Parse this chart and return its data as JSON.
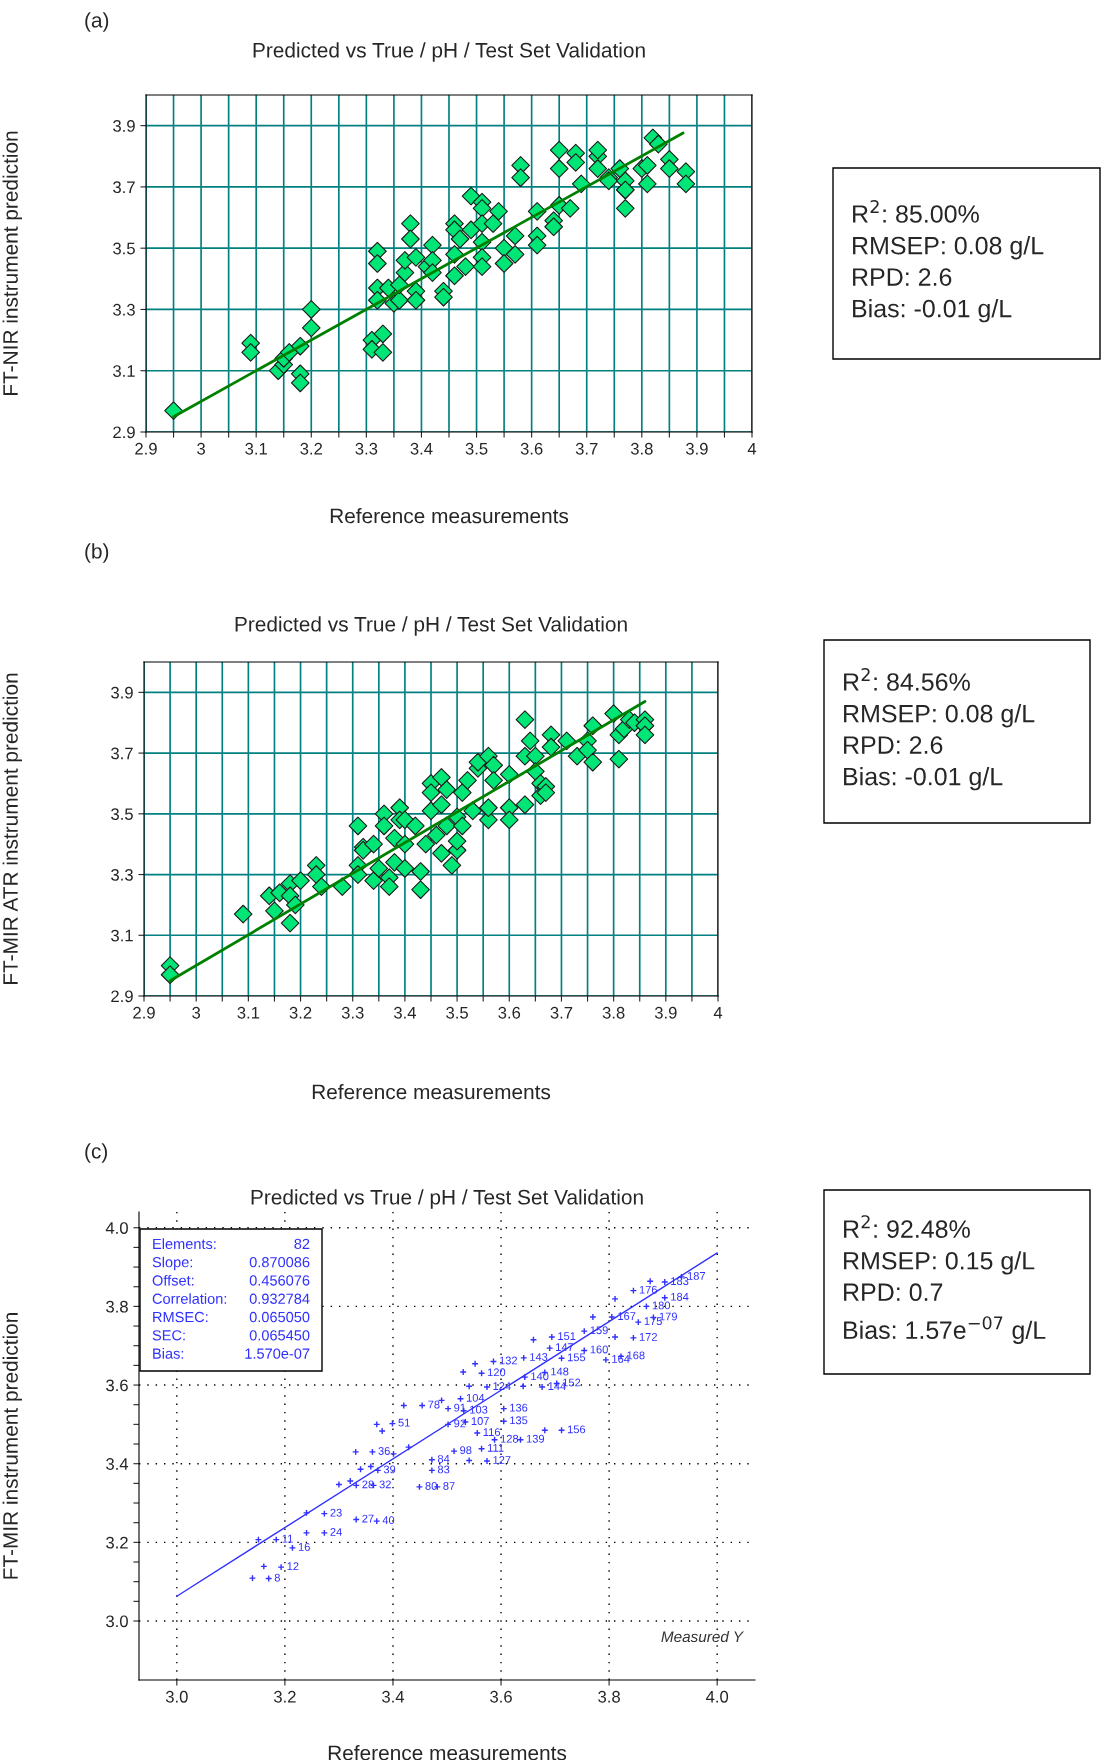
{
  "chart_data": [
    {
      "type": "scatter",
      "title": "Predicted vs True / pH / Test Set Validation",
      "xlabel": "Reference measurements",
      "ylabel": "FT-NIR instrument prediction",
      "annotations": [
        "(a)",
        "R$^{2}$: 85.00%\nRMSEP: 0.08 g/L\nRPD: 2.6\nBias: -0.01 g/L"
      ],
      "xlim": [
        2.9,
        4.0
      ],
      "ylim": [
        2.9,
        4.0
      ],
      "xticks": [
        2.9,
        {
          "value": 2.95,
          "label": null
        },
        3,
        {
          "value": 3.05,
          "label": null
        },
        3.1,
        {
          "value": 3.15,
          "label": null
        },
        3.2,
        {
          "value": 3.25,
          "label": null
        },
        3.3,
        {
          "value": 3.35,
          "label": null
        },
        3.4,
        {
          "value": 3.45,
          "label": null
        },
        3.5,
        {
          "value": 3.55,
          "label": null
        },
        3.6,
        {
          "value": 3.65,
          "label": null
        },
        3.7,
        {
          "value": 3.75,
          "label": null
        },
        3.8,
        {
          "value": 3.85,
          "label": null
        },
        3.9,
        {
          "value": 3.95,
          "label": null
        },
        4
      ],
      "yticks": [
        2.9,
        3.1,
        3.3,
        3.5,
        3.7,
        3.9
      ],
      "grid": true,
      "series": [
        {
          "type": "scatter",
          "marker": "diamond",
          "color": "#00e676",
          "x": [
            2.95,
            3.09,
            3.09,
            3.14,
            3.15,
            3.15,
            3.16,
            3.18,
            3.18,
            3.18,
            3.2,
            3.2,
            3.31,
            3.31,
            3.33,
            3.33,
            3.32,
            3.32,
            3.32,
            3.32,
            3.34,
            3.35,
            3.36,
            3.36,
            3.37,
            3.37,
            3.38,
            3.38,
            3.39,
            3.39,
            3.39,
            3.41,
            3.42,
            3.42,
            3.42,
            3.44,
            3.44,
            3.46,
            3.46,
            3.46,
            3.46,
            3.47,
            3.48,
            3.49,
            3.49,
            3.51,
            3.51,
            3.51,
            3.51,
            3.51,
            3.51,
            3.53,
            3.54,
            3.55,
            3.55,
            3.57,
            3.57,
            3.58,
            3.58,
            3.61,
            3.61,
            3.61,
            3.64,
            3.64,
            3.65,
            3.65,
            3.65,
            3.67,
            3.68,
            3.68,
            3.69,
            3.72,
            3.72,
            3.72,
            3.74,
            3.74,
            3.76,
            3.77,
            3.77,
            3.77,
            3.77,
            3.8,
            3.81,
            3.81,
            3.82,
            3.83,
            3.85,
            3.85,
            3.88,
            3.88
          ],
          "values": [
            2.97,
            3.19,
            3.16,
            3.1,
            3.12,
            3.14,
            3.16,
            3.18,
            3.09,
            3.06,
            3.3,
            3.24,
            3.2,
            3.17,
            3.22,
            3.16,
            3.49,
            3.45,
            3.37,
            3.33,
            3.37,
            3.32,
            3.33,
            3.38,
            3.42,
            3.46,
            3.58,
            3.53,
            3.47,
            3.36,
            3.33,
            3.44,
            3.51,
            3.46,
            3.42,
            3.36,
            3.34,
            3.58,
            3.56,
            3.48,
            3.41,
            3.53,
            3.44,
            3.67,
            3.56,
            3.65,
            3.63,
            3.58,
            3.52,
            3.47,
            3.44,
            3.58,
            3.62,
            3.5,
            3.45,
            3.54,
            3.48,
            3.77,
            3.73,
            3.62,
            3.54,
            3.51,
            3.59,
            3.57,
            3.82,
            3.76,
            3.64,
            3.63,
            3.81,
            3.78,
            3.71,
            3.8,
            3.76,
            3.82,
            3.73,
            3.72,
            3.76,
            3.63,
            3.69,
            3.72,
            3.69,
            3.76,
            3.77,
            3.71,
            3.86,
            3.84,
            3.79,
            3.76,
            3.75,
            3.71
          ]
        },
        {
          "type": "line",
          "color": "#008000",
          "x": [
            2.95,
            3.875
          ],
          "values": [
            2.95,
            3.876
          ]
        }
      ]
    },
    {
      "type": "scatter",
      "title": "Predicted vs True / pH / Test Set Validation",
      "xlabel": "Reference measurements",
      "ylabel": "FT-MIR ATR instrument prediction",
      "annotations": [
        "(b)",
        "R$^{2}$: 84.56%\nRMSEP: 0.08 g/L\nRPD: 2.6\nBias: -0.01 g/L"
      ],
      "xlim": [
        2.9,
        4.0
      ],
      "ylim": [
        2.9,
        4.0
      ],
      "xticks": [
        2.9,
        {
          "value": 2.95,
          "label": null
        },
        3,
        {
          "value": 3.05,
          "label": null
        },
        3.1,
        {
          "value": 3.15,
          "label": null
        },
        3.2,
        {
          "value": 3.25,
          "label": null
        },
        3.3,
        {
          "value": 3.35,
          "label": null
        },
        3.4,
        {
          "value": 3.45,
          "label": null
        },
        3.5,
        {
          "value": 3.55,
          "label": null
        },
        3.6,
        {
          "value": 3.65,
          "label": null
        },
        3.7,
        {
          "value": 3.75,
          "label": null
        },
        3.8,
        {
          "value": 3.85,
          "label": null
        },
        3.9,
        {
          "value": 3.95,
          "label": null
        },
        4
      ],
      "yticks": [
        2.9,
        3.1,
        3.3,
        3.5,
        3.7,
        3.9
      ],
      "grid": true,
      "series": [
        {
          "type": "scatter",
          "marker": "diamond",
          "color": "#00e676",
          "x": [
            2.95,
            2.95,
            3.09,
            3.14,
            3.15,
            3.16,
            3.18,
            3.18,
            3.18,
            3.19,
            3.2,
            3.23,
            3.23,
            3.24,
            3.28,
            3.31,
            3.31,
            3.31,
            3.32,
            3.32,
            3.34,
            3.34,
            3.35,
            3.36,
            3.36,
            3.37,
            3.37,
            3.38,
            3.38,
            3.39,
            3.39,
            3.4,
            3.4,
            3.4,
            3.42,
            3.43,
            3.43,
            3.44,
            3.45,
            3.45,
            3.45,
            3.46,
            3.47,
            3.47,
            3.47,
            3.48,
            3.48,
            3.49,
            3.5,
            3.5,
            3.5,
            3.51,
            3.51,
            3.52,
            3.53,
            3.54,
            3.54,
            3.56,
            3.56,
            3.56,
            3.57,
            3.57,
            3.6,
            3.6,
            3.6,
            3.63,
            3.63,
            3.63,
            3.64,
            3.65,
            3.65,
            3.66,
            3.66,
            3.67,
            3.67,
            3.68,
            3.68,
            3.71,
            3.73,
            3.75,
            3.75,
            3.76,
            3.76,
            3.8,
            3.81,
            3.81,
            3.82,
            3.83,
            3.84,
            3.86,
            3.86,
            3.86
          ],
          "values": [
            3.0,
            2.97,
            3.17,
            3.23,
            3.18,
            3.24,
            3.27,
            3.23,
            3.14,
            3.2,
            3.28,
            3.33,
            3.3,
            3.26,
            3.26,
            3.33,
            3.3,
            3.46,
            3.39,
            3.38,
            3.28,
            3.4,
            3.32,
            3.5,
            3.46,
            3.29,
            3.26,
            3.34,
            3.42,
            3.52,
            3.48,
            3.48,
            3.4,
            3.32,
            3.46,
            3.31,
            3.25,
            3.4,
            3.6,
            3.57,
            3.51,
            3.43,
            3.62,
            3.53,
            3.37,
            3.58,
            3.46,
            3.33,
            3.49,
            3.38,
            3.41,
            3.46,
            3.57,
            3.61,
            3.51,
            3.65,
            3.67,
            3.69,
            3.48,
            3.52,
            3.66,
            3.61,
            3.63,
            3.52,
            3.48,
            3.81,
            3.69,
            3.53,
            3.74,
            3.69,
            3.64,
            3.6,
            3.56,
            3.59,
            3.57,
            3.76,
            3.72,
            3.74,
            3.69,
            3.74,
            3.71,
            3.79,
            3.67,
            3.83,
            3.76,
            3.68,
            3.78,
            3.81,
            3.8,
            3.81,
            3.79,
            3.76
          ]
        },
        {
          "type": "line",
          "color": "#008000",
          "x": [
            2.95,
            3.86
          ],
          "values": [
            2.95,
            3.87
          ]
        }
      ]
    },
    {
      "type": "scatter",
      "title": "Predicted vs True / pH / Test Set Validation",
      "xlabel": "Reference measurements",
      "ylabel": "FT-MIR instrument prediction",
      "annotations": [
        "(c)",
        "R$^{2}$: 92.48%\nRMSEP: 0.15 g/L\nRPD: 0.7\nBias: 1.57e$^{−07}$ g/L",
        "Elements: 82\nSlope: 0.870086\nOffset: 0.456076\nCorrelation: 0.932784\nRMSEC: 0.065050\nSEC: 0.065450\nBias: 1.570e-07",
        "Measured Y",
        {
          "text": "8",
          "x": 3.17,
          "y": 3.108
        },
        {
          "text": "12",
          "x": 3.193,
          "y": 3.137
        },
        {
          "text": "11",
          "x": 3.184,
          "y": 3.207
        },
        {
          "text": "16",
          "x": 3.214,
          "y": 3.186
        },
        {
          "text": "23",
          "x": 3.273,
          "y": 3.273
        },
        {
          "text": "24",
          "x": 3.273,
          "y": 3.224
        },
        {
          "text": "27",
          "x": 3.332,
          "y": 3.258
        },
        {
          "text": "40",
          "x": 3.37,
          "y": 3.254
        },
        {
          "text": "28",
          "x": 3.332,
          "y": 3.345
        },
        {
          "text": "32",
          "x": 3.364,
          "y": 3.345
        },
        {
          "text": "36",
          "x": 3.362,
          "y": 3.43
        },
        {
          "text": "39",
          "x": 3.372,
          "y": 3.383
        },
        {
          "text": "51",
          "x": 3.399,
          "y": 3.502
        },
        {
          "text": "80",
          "x": 3.449,
          "y": 3.341
        },
        {
          "text": "87",
          "x": 3.482,
          "y": 3.341
        },
        {
          "text": "84",
          "x": 3.472,
          "y": 3.41
        },
        {
          "text": "83",
          "x": 3.472,
          "y": 3.383
        },
        {
          "text": "78",
          "x": 3.454,
          "y": 3.548
        },
        {
          "text": "91",
          "x": 3.502,
          "y": 3.54
        },
        {
          "text": "92",
          "x": 3.502,
          "y": 3.5
        },
        {
          "text": "98",
          "x": 3.513,
          "y": 3.432
        },
        {
          "text": "103",
          "x": 3.531,
          "y": 3.535
        },
        {
          "text": "104",
          "x": 3.525,
          "y": 3.565
        },
        {
          "text": "107",
          "x": 3.534,
          "y": 3.506
        },
        {
          "text": "111",
          "x": 3.564,
          "y": 3.438
        },
        {
          "text": "116",
          "x": 3.556,
          "y": 3.478
        },
        {
          "text": "120",
          "x": 3.564,
          "y": 3.63
        },
        {
          "text": "124",
          "x": 3.574,
          "y": 3.595
        },
        {
          "text": "127",
          "x": 3.574,
          "y": 3.407
        },
        {
          "text": "128",
          "x": 3.588,
          "y": 3.461
        },
        {
          "text": "132",
          "x": 3.586,
          "y": 3.66
        },
        {
          "text": "135",
          "x": 3.605,
          "y": 3.508
        },
        {
          "text": "136",
          "x": 3.605,
          "y": 3.54
        },
        {
          "text": "139",
          "x": 3.636,
          "y": 3.461
        },
        {
          "text": "140",
          "x": 3.644,
          "y": 3.62
        },
        {
          "text": "143",
          "x": 3.642,
          "y": 3.669
        },
        {
          "text": "144",
          "x": 3.676,
          "y": 3.595
        },
        {
          "text": "147",
          "x": 3.69,
          "y": 3.694
        },
        {
          "text": "148",
          "x": 3.681,
          "y": 3.632
        },
        {
          "text": "151",
          "x": 3.694,
          "y": 3.722
        },
        {
          "text": "152",
          "x": 3.703,
          "y": 3.604
        },
        {
          "text": "155",
          "x": 3.712,
          "y": 3.668
        },
        {
          "text": "156",
          "x": 3.712,
          "y": 3.485
        },
        {
          "text": "159",
          "x": 3.754,
          "y": 3.737
        },
        {
          "text": "160",
          "x": 3.754,
          "y": 3.688
        },
        {
          "text": "164",
          "x": 3.794,
          "y": 3.664
        },
        {
          "text": "168",
          "x": 3.822,
          "y": 3.673
        },
        {
          "text": "167",
          "x": 3.805,
          "y": 3.773
        },
        {
          "text": "172",
          "x": 3.845,
          "y": 3.72
        },
        {
          "text": "175",
          "x": 3.854,
          "y": 3.76
        },
        {
          "text": "179",
          "x": 3.882,
          "y": 3.772
        },
        {
          "text": "176",
          "x": 3.845,
          "y": 3.84
        },
        {
          "text": "180",
          "x": 3.869,
          "y": 3.8
        },
        {
          "text": "184",
          "x": 3.903,
          "y": 3.822
        },
        {
          "text": "183",
          "x": 3.903,
          "y": 3.862
        },
        {
          "text": "187",
          "x": 3.934,
          "y": 3.875
        }
      ],
      "xlim": [
        2.93,
        4.07
      ],
      "ylim": [
        2.85,
        4.04
      ],
      "xticks": [
        {
          "value": 3,
          "label": "3.0"
        },
        3.2,
        3.4,
        3.6,
        3.8,
        {
          "value": 4,
          "label": "4.0"
        }
      ],
      "yticks": [
        {
          "value": 3,
          "label": "3.0"
        },
        {
          "value": 3.05,
          "label": null
        },
        {
          "value": 3.1,
          "label": null
        },
        {
          "value": 3.15,
          "label": null
        },
        3.2,
        {
          "value": 3.25,
          "label": null
        },
        {
          "value": 3.3,
          "label": null
        },
        {
          "value": 3.35,
          "label": null
        },
        3.4,
        {
          "value": 3.45,
          "label": null
        },
        {
          "value": 3.5,
          "label": null
        },
        {
          "value": 3.55,
          "label": null
        },
        3.6,
        {
          "value": 3.65,
          "label": null
        },
        {
          "value": 3.7,
          "label": null
        },
        {
          "value": 3.75,
          "label": null
        },
        3.8,
        {
          "value": 3.85,
          "label": null
        },
        {
          "value": 3.9,
          "label": null
        },
        {
          "value": 3.95,
          "label": null
        },
        {
          "value": 4,
          "label": "4.0"
        }
      ],
      "grid": true,
      "series": [
        {
          "type": "scatter",
          "marker": "cross",
          "color": "#3030ff",
          "x": [
            3.17,
            3.193,
            3.184,
            3.214,
            3.273,
            3.273,
            3.332,
            3.37,
            3.332,
            3.364,
            3.362,
            3.372,
            3.399,
            3.449,
            3.482,
            3.472,
            3.472,
            3.454,
            3.502,
            3.502,
            3.513,
            3.531,
            3.525,
            3.534,
            3.564,
            3.556,
            3.564,
            3.574,
            3.574,
            3.588,
            3.586,
            3.605,
            3.605,
            3.636,
            3.644,
            3.642,
            3.676,
            3.69,
            3.681,
            3.694,
            3.703,
            3.712,
            3.712,
            3.754,
            3.754,
            3.794,
            3.822,
            3.805,
            3.845,
            3.854,
            3.882,
            3.845,
            3.869,
            3.903,
            3.903,
            3.934,
            3.14,
            3.161,
            3.151,
            3.24,
            3.24,
            3.3,
            3.321,
            3.34,
            3.359,
            3.331,
            3.37,
            3.38,
            3.42,
            3.401,
            3.429,
            3.49,
            3.53,
            3.552,
            3.541,
            3.541,
            3.641,
            3.66,
            3.681,
            3.77,
            3.811,
            3.811,
            3.876
          ],
          "values": [
            3.108,
            3.137,
            3.207,
            3.186,
            3.273,
            3.224,
            3.258,
            3.254,
            3.345,
            3.345,
            3.43,
            3.383,
            3.502,
            3.341,
            3.341,
            3.41,
            3.383,
            3.548,
            3.54,
            3.5,
            3.432,
            3.535,
            3.565,
            3.506,
            3.438,
            3.478,
            3.63,
            3.595,
            3.407,
            3.461,
            3.66,
            3.508,
            3.54,
            3.461,
            3.62,
            3.669,
            3.595,
            3.694,
            3.632,
            3.722,
            3.604,
            3.668,
            3.485,
            3.737,
            3.688,
            3.664,
            3.673,
            3.773,
            3.72,
            3.76,
            3.772,
            3.84,
            3.8,
            3.822,
            3.862,
            3.875,
            3.109,
            3.139,
            3.207,
            3.224,
            3.275,
            3.347,
            3.356,
            3.386,
            3.393,
            3.43,
            3.5,
            3.483,
            3.548,
            3.425,
            3.442,
            3.561,
            3.633,
            3.654,
            3.597,
            3.408,
            3.597,
            3.715,
            3.485,
            3.773,
            3.722,
            3.819,
            3.864
          ]
        },
        {
          "type": "line",
          "color": "#3030ff",
          "x": [
            3.0,
            4.0
          ],
          "values": [
            3.063,
            3.936
          ]
        }
      ]
    }
  ]
}
